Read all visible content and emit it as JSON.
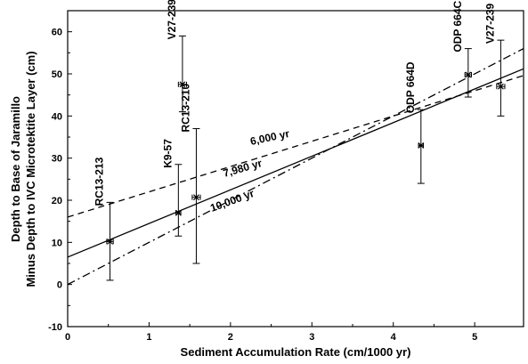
{
  "chart_data": {
    "type": "scatter",
    "title": "",
    "xlabel": "Sediment Accumulation Rate (cm/1000 yr)",
    "ylabel_lines": [
      "Depth to Base of Jaramillo",
      "Minus Depth to IVC Microtektite Layer (cm)"
    ],
    "xlim": [
      0,
      5.6
    ],
    "ylim": [
      -10,
      65
    ],
    "x_ticks": [
      0,
      1,
      2,
      3,
      4,
      5
    ],
    "y_ticks": [
      -10,
      0,
      10,
      20,
      30,
      40,
      50,
      60
    ],
    "grid": false,
    "legend": "none",
    "points": [
      {
        "label": "RC13-213",
        "x": 0.52,
        "y": 10.2,
        "y_err_low": 1,
        "y_err_high": 19.5,
        "x_err": 0.04
      },
      {
        "label": "K9-57",
        "x": 1.36,
        "y": 17,
        "y_err_low": 11.5,
        "y_err_high": 28.5,
        "x_err": 0.03
      },
      {
        "label": "RC13-210",
        "x": 1.58,
        "y": 20.7,
        "y_err_low": 5,
        "y_err_high": 37,
        "x_err": 0.05
      },
      {
        "label": "V27-239",
        "x": 1.41,
        "y": 47.5,
        "y_err_low": 41,
        "y_err_high": 59,
        "x_err": 0.05
      },
      {
        "label": "ODP 664D",
        "x": 4.34,
        "y": 33,
        "y_err_low": 24,
        "y_err_high": 41.5,
        "x_err": 0.03
      },
      {
        "label": "ODP 664C",
        "x": 4.92,
        "y": 49.8,
        "y_err_low": 44.5,
        "y_err_high": 56,
        "x_err": 0.04
      },
      {
        "label": "V27-239",
        "x": 5.32,
        "y": 47,
        "y_err_low": 40,
        "y_err_high": 58,
        "x_err": 0.05
      }
    ],
    "lines": [
      {
        "label": "6,000 yr",
        "style": "dashed",
        "x": [
          0,
          5.6
        ],
        "y": [
          16,
          49.6
        ]
      },
      {
        "label": "7,980 yr",
        "style": "solid",
        "x": [
          0,
          5.6
        ],
        "y": [
          6.5,
          51.2
        ]
      },
      {
        "label": "10,000 yr",
        "style": "dashdot",
        "x": [
          0,
          5.6
        ],
        "y": [
          0,
          56
        ]
      }
    ]
  }
}
